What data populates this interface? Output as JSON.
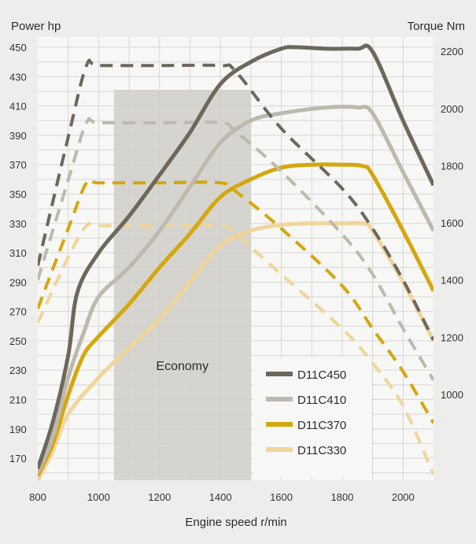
{
  "chart_data": {
    "type": "line",
    "left_axis_title": "Power hp",
    "right_axis_title": "Torque Nm",
    "xlabel": "Engine speed r/min",
    "x_ticks": [
      "800",
      "1000",
      "1200",
      "1400",
      "1600",
      "1800",
      "2000"
    ],
    "left_ticks": [
      "170",
      "190",
      "210",
      "230",
      "250",
      "270",
      "290",
      "310",
      "330",
      "350",
      "370",
      "390",
      "410",
      "430",
      "450"
    ],
    "right_ticks": [
      "1000",
      "1200",
      "1400",
      "1600",
      "1800",
      "2000",
      "2200"
    ],
    "xlim": [
      800,
      2100
    ],
    "left_ylim": [
      155,
      457
    ],
    "right_ylim": [
      700,
      2250
    ],
    "grid": true,
    "legend_position": "bottom-right",
    "economy_zone": {
      "label": "Economy",
      "x_range": [
        1050,
        1500
      ]
    },
    "series": [
      {
        "name": "D11C450",
        "color": "#6d675c",
        "power": {
          "x": [
            800,
            850,
            900,
            930,
            1000,
            1100,
            1200,
            1300,
            1400,
            1500,
            1600,
            1650,
            1750,
            1850,
            1900,
            2000,
            2100
          ],
          "y": [
            163,
            195,
            240,
            283,
            310,
            335,
            363,
            392,
            425,
            440,
            449,
            450,
            449,
            449,
            447,
            400,
            356
          ]
        },
        "torque": {
          "x": [
            800,
            900,
            960,
            1000,
            1200,
            1400,
            1450,
            1600,
            1800,
            1900,
            2000,
            2100
          ],
          "y": [
            1450,
            1900,
            2150,
            2150,
            2150,
            2150,
            2130,
            1930,
            1720,
            1580,
            1400,
            1190
          ]
        }
      },
      {
        "name": "D11C410",
        "color": "#bdb9ae",
        "power": {
          "x": [
            800,
            850,
            900,
            950,
            1000,
            1100,
            1200,
            1300,
            1400,
            1500,
            1600,
            1750,
            1850,
            1900,
            2000,
            2100
          ],
          "y": [
            160,
            185,
            225,
            255,
            280,
            300,
            325,
            355,
            385,
            400,
            405,
            409,
            409,
            405,
            365,
            325
          ]
        },
        "torque": {
          "x": [
            800,
            900,
            960,
            1000,
            1200,
            1400,
            1450,
            1600,
            1800,
            1900,
            2000,
            2100
          ],
          "y": [
            1400,
            1750,
            1950,
            1950,
            1950,
            1950,
            1920,
            1780,
            1560,
            1420,
            1230,
            1050
          ]
        }
      },
      {
        "name": "D11C370",
        "color": "#d4a70e",
        "power": {
          "x": [
            800,
            850,
            900,
            950,
            1000,
            1100,
            1200,
            1300,
            1400,
            1500,
            1600,
            1700,
            1800,
            1870,
            1900,
            2000,
            2100
          ],
          "y": [
            158,
            180,
            213,
            240,
            253,
            275,
            300,
            323,
            348,
            360,
            368,
            370,
            370,
            369,
            363,
            325,
            284
          ]
        },
        "torque": {
          "x": [
            800,
            900,
            960,
            1000,
            1200,
            1400,
            1450,
            1600,
            1800,
            1900,
            2000,
            2100
          ],
          "y": [
            1300,
            1580,
            1740,
            1740,
            1740,
            1740,
            1710,
            1580,
            1380,
            1230,
            1080,
            900
          ]
        }
      },
      {
        "name": "D11C330",
        "color": "#f0d59a",
        "power": {
          "x": [
            800,
            850,
            900,
            1000,
            1100,
            1200,
            1300,
            1400,
            1500,
            1600,
            1700,
            1800,
            1870,
            1900,
            2000,
            2100
          ],
          "y": [
            155,
            175,
            200,
            225,
            245,
            265,
            290,
            315,
            325,
            329,
            330,
            330,
            330,
            325,
            290,
            250
          ]
        },
        "torque": {
          "x": [
            800,
            900,
            960,
            1000,
            1200,
            1400,
            1450,
            1600,
            1800,
            1900,
            2000,
            2100
          ],
          "y": [
            1250,
            1480,
            1590,
            1590,
            1590,
            1590,
            1560,
            1420,
            1230,
            1110,
            960,
            720
          ]
        }
      }
    ]
  }
}
